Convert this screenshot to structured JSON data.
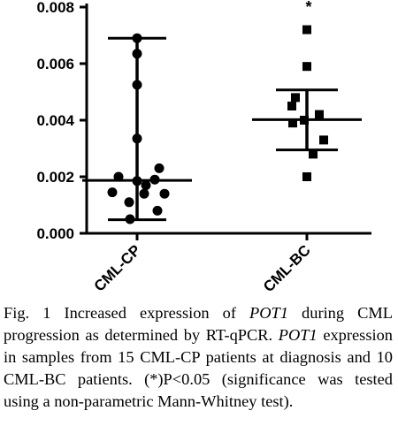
{
  "chart_data": {
    "type": "scatter",
    "categories": [
      "CML-CP",
      "CML-BC"
    ],
    "y_ticks": [
      "0.000",
      "0.002",
      "0.004",
      "0.006",
      "0.008"
    ],
    "ylim": [
      0,
      0.008
    ],
    "grid": false,
    "series": [
      {
        "category": "CML-CP",
        "marker": "circle",
        "values": [
          0.0069,
          0.00635,
          0.00525,
          0.00335,
          0.0023,
          0.002,
          0.00185,
          0.0019,
          0.0017,
          0.00145,
          0.0014,
          0.0014,
          0.0011,
          0.0008,
          0.0005
        ],
        "mean": 0.00187,
        "whisker_low": 0.00048,
        "whisker_high": 0.0069
      },
      {
        "category": "CML-BC",
        "marker": "square",
        "values": [
          0.0072,
          0.0059,
          0.0048,
          0.0045,
          0.0042,
          0.004,
          0.0039,
          0.0033,
          0.0028,
          0.002
        ],
        "mean": 0.00402,
        "whisker_low": 0.00295,
        "whisker_high": 0.00507,
        "annotation": "*"
      }
    ]
  },
  "caption": {
    "prefix": "Fig. 1 Increased expression of ",
    "gene1": "POT1",
    "middle": " during CML progression as determined by RT-qPCR. ",
    "gene2": "POT1",
    "suffix": " expression in samples from 15 CML-CP patients at diagnosis and 10 CML-BC patients. (*)P<0.05 (significance was tested using a non-parametric Mann-Whitney test)."
  }
}
